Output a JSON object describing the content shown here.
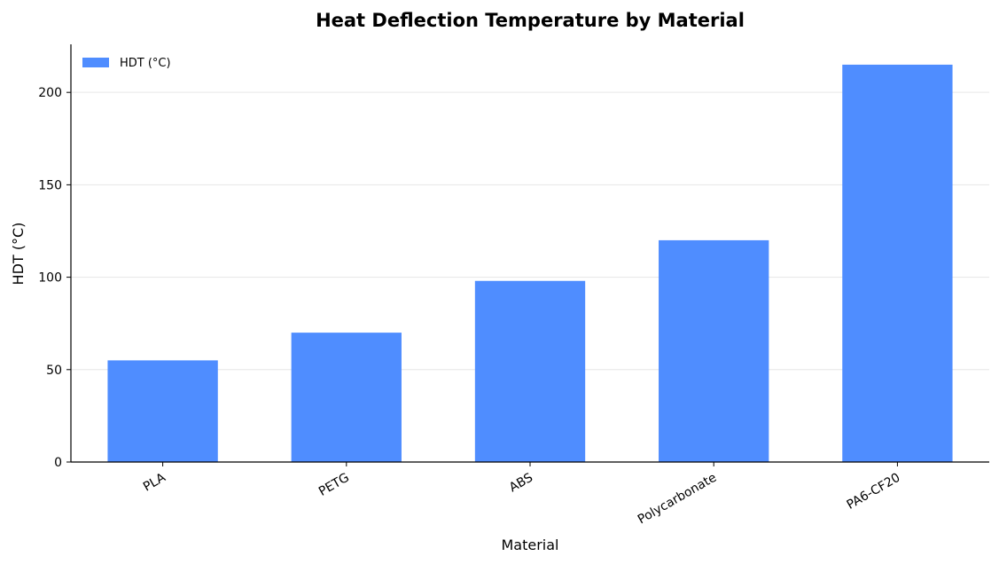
{
  "chart_data": {
    "type": "bar",
    "title": "Heat Deflection Temperature by Material",
    "xlabel": "Material",
    "ylabel": "HDT (°C)",
    "categories": [
      "PLA",
      "PETG",
      "ABS",
      "Polycarbonate",
      "PA6-CF20"
    ],
    "series": [
      {
        "name": "HDT (°C)",
        "values": [
          55,
          70,
          98,
          120,
          215
        ],
        "color": "#4f8dff"
      }
    ],
    "ylim": [
      0,
      226
    ],
    "yticks": [
      0,
      50,
      100,
      150,
      200
    ],
    "grid": true,
    "legend_position": "top-left"
  }
}
